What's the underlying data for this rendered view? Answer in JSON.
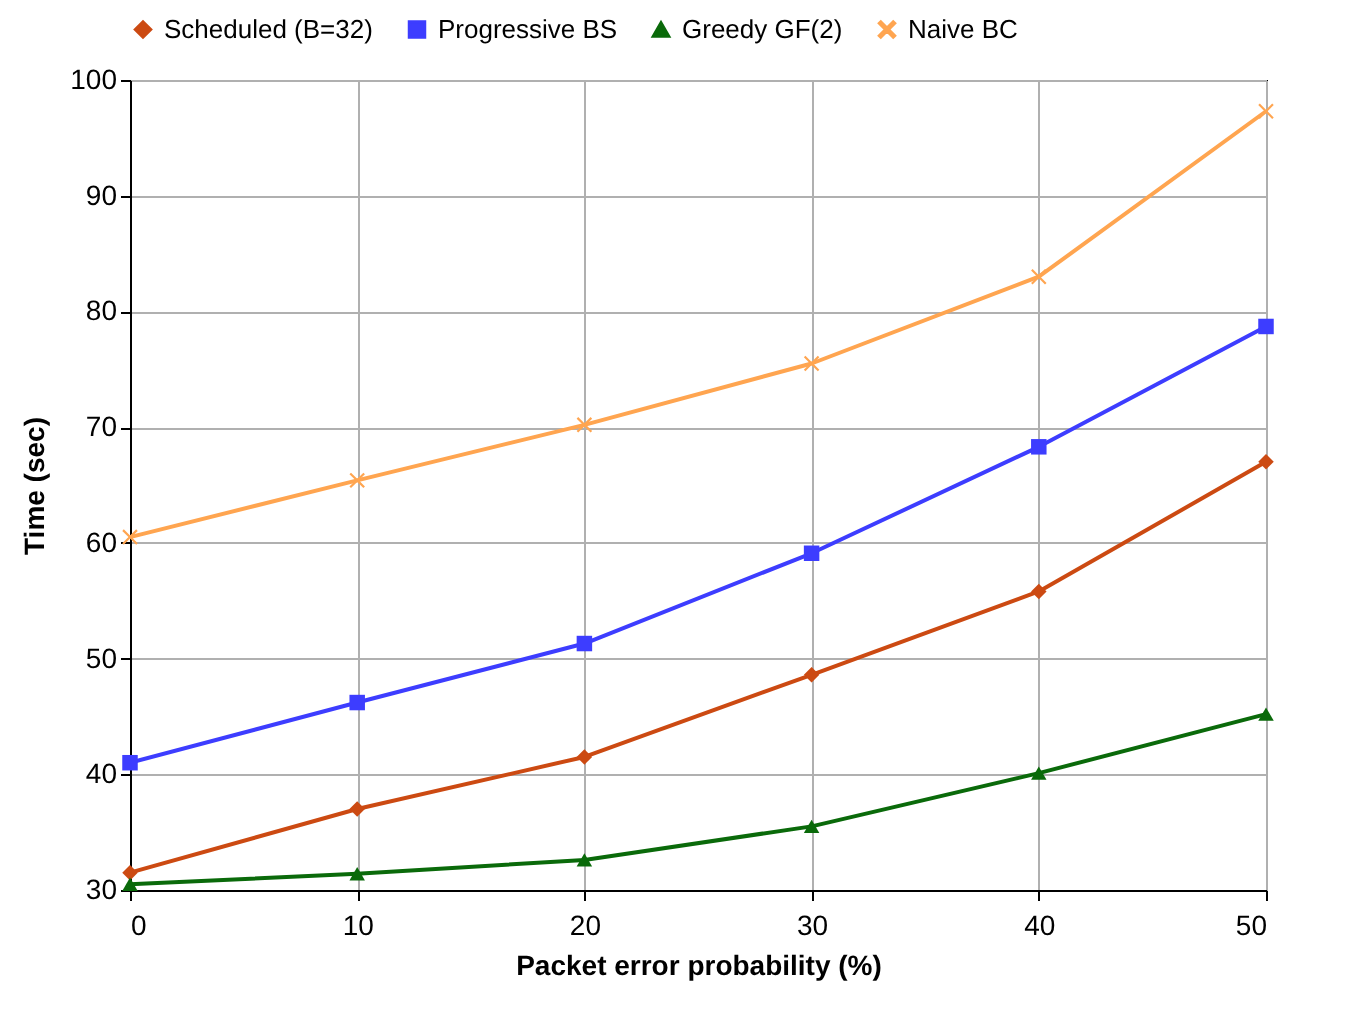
{
  "chart_data": {
    "type": "line",
    "xlabel": "Packet error probability (%)",
    "ylabel": "Time (sec)",
    "x": [
      0,
      10,
      20,
      30,
      40,
      50
    ],
    "series": [
      {
        "name": "Scheduled (B=32)",
        "color": "#cc4a12",
        "marker": "diamond",
        "values": [
          31.5,
          37,
          41.5,
          48.6,
          55.8,
          67
        ]
      },
      {
        "name": "Progressive BS",
        "color": "#3d3dff",
        "marker": "square",
        "values": [
          41,
          46.2,
          51.3,
          59.1,
          68.3,
          78.7
        ]
      },
      {
        "name": "Greedy GF(2)",
        "color": "#0a6a0a",
        "marker": "triangle",
        "values": [
          30.5,
          31.4,
          32.6,
          35.5,
          40.1,
          45.2
        ]
      },
      {
        "name": "Naive BC",
        "color": "#ffa550",
        "marker": "cross",
        "values": [
          60.5,
          65.4,
          70.2,
          75.5,
          83,
          97.3
        ]
      }
    ],
    "xlim": [
      0,
      50
    ],
    "xticks": [
      0,
      10,
      20,
      30,
      40,
      50
    ],
    "ylim": [
      30,
      100
    ],
    "yticks": [
      30,
      40,
      50,
      60,
      70,
      80,
      90,
      100
    ],
    "grid": true,
    "legend": "top",
    "line_style": "solid"
  }
}
